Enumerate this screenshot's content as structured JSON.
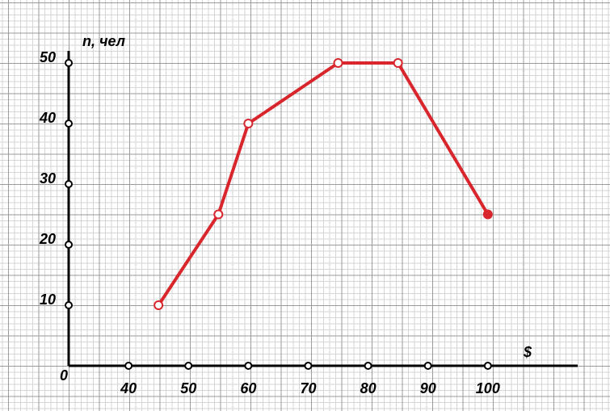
{
  "chart_data": {
    "type": "line",
    "x_label": "$",
    "y_label": "n, чел",
    "origin_label": "0",
    "x": [
      45,
      55,
      60,
      75,
      85,
      100
    ],
    "series": [
      {
        "color": "#d9262c",
        "values": [
          10,
          25,
          40,
          50,
          50,
          25
        ]
      }
    ],
    "xlim": [
      30,
      115
    ],
    "xticks": [
      40,
      50,
      60,
      70,
      80,
      90,
      100
    ],
    "ylim": [
      0,
      52
    ],
    "yticks": [
      10,
      20,
      30,
      40,
      50
    ]
  }
}
